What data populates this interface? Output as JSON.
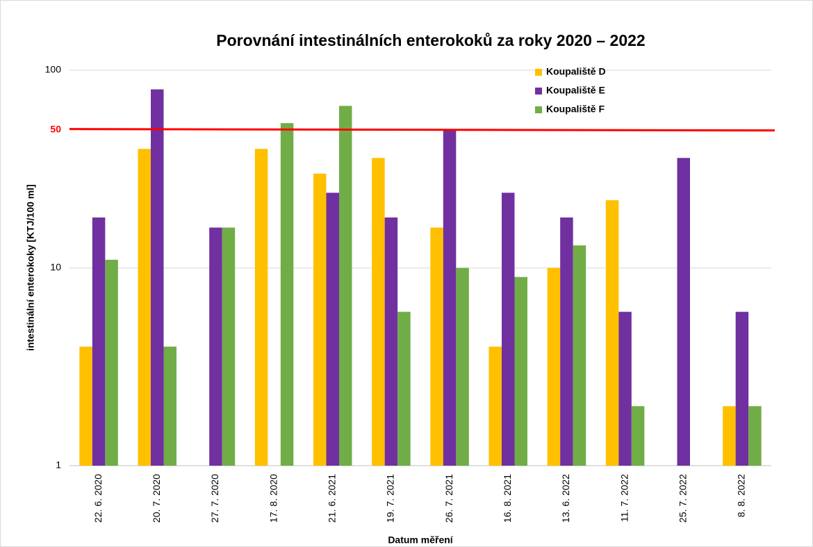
{
  "chart_data": {
    "type": "bar",
    "title": "Porovnání intestinálních enterokoků za roky 2020 – 2022",
    "x_label": "Datum měření",
    "y_label": "intestinální enterokoky [KTJ/100 ml]",
    "categories": [
      "22. 6. 2020",
      "20. 7. 2020",
      "27. 7. 2020",
      "17. 8. 2020",
      "21. 6. 2021",
      "19. 7. 2021",
      "26. 7. 2021",
      "16. 8. 2021",
      "13. 6. 2022",
      "11. 7. 2022",
      "25. 7. 2022",
      "8. 8. 2022"
    ],
    "series": [
      {
        "name": "Koupaliště D",
        "color": "#ffc000",
        "values": [
          4,
          40,
          null,
          40,
          30,
          36,
          16,
          4,
          10,
          22,
          null,
          2
        ]
      },
      {
        "name": "Koupaliště E",
        "color": "#7030a0",
        "values": [
          18,
          80,
          16,
          null,
          24,
          18,
          50,
          24,
          18,
          6,
          36,
          6
        ]
      },
      {
        "name": "Koupaliště F",
        "color": "#70ad47",
        "values": [
          11,
          4,
          16,
          54,
          66,
          6,
          10,
          9,
          13,
          2,
          null,
          2
        ]
      }
    ],
    "ylim": [
      1,
      100
    ],
    "yticks": [
      1,
      10,
      100
    ],
    "log_scale": true,
    "grid": true,
    "threshold": 50,
    "threshold_color": "#ff0000",
    "legend_position": "top-right"
  }
}
